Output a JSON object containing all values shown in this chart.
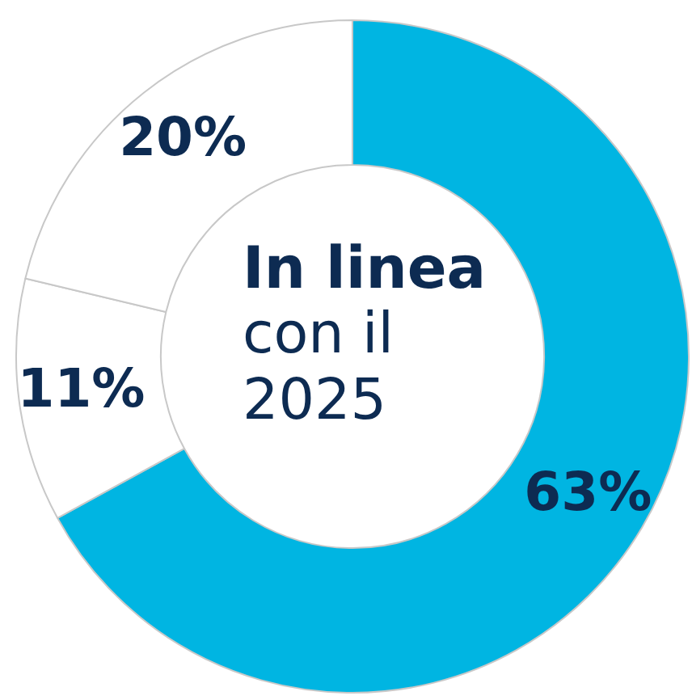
{
  "chart_data": {
    "type": "donut",
    "title": "In linea",
    "subtitle": "con il 2025",
    "categories": [
      null,
      null,
      null
    ],
    "values": [
      63,
      11,
      20
    ],
    "colors": [
      "#00b5e2",
      "#ffffff",
      "#ffffff"
    ],
    "value_labels": [
      "63%",
      "11%",
      "20%"
    ]
  }
}
